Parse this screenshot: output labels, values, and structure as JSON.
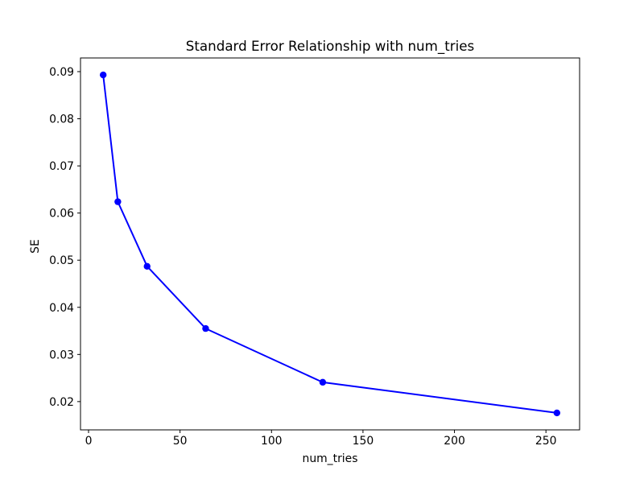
{
  "chart_data": {
    "type": "line",
    "title": "Standard Error Relationship with num_tries",
    "xlabel": "num_tries",
    "ylabel": "SE",
    "x": [
      8,
      16,
      32,
      64,
      128,
      256
    ],
    "y": [
      0.0893,
      0.0624,
      0.0487,
      0.0355,
      0.0241,
      0.0176
    ],
    "series": [
      {
        "name": "SE",
        "x": [
          8,
          16,
          32,
          64,
          128,
          256
        ],
        "y": [
          0.0893,
          0.0624,
          0.0487,
          0.0355,
          0.0241,
          0.0176
        ]
      }
    ],
    "xlim": [
      -4.4,
      268.4
    ],
    "ylim": [
      0.014,
      0.0929
    ],
    "xticks": {
      "values": [
        0,
        50,
        100,
        150,
        200,
        250
      ],
      "labels": [
        "0",
        "50",
        "100",
        "150",
        "200",
        "250"
      ]
    },
    "yticks": {
      "values": [
        0.02,
        0.03,
        0.04,
        0.05,
        0.06,
        0.07,
        0.08,
        0.09
      ],
      "labels": [
        "0.02",
        "0.03",
        "0.04",
        "0.05",
        "0.06",
        "0.07",
        "0.08",
        "0.09"
      ]
    },
    "line_color": "#0000ff",
    "marker": "o",
    "grid": false,
    "legend_position": "none",
    "background_color": "#ffffff",
    "frame_color": "#000000"
  }
}
